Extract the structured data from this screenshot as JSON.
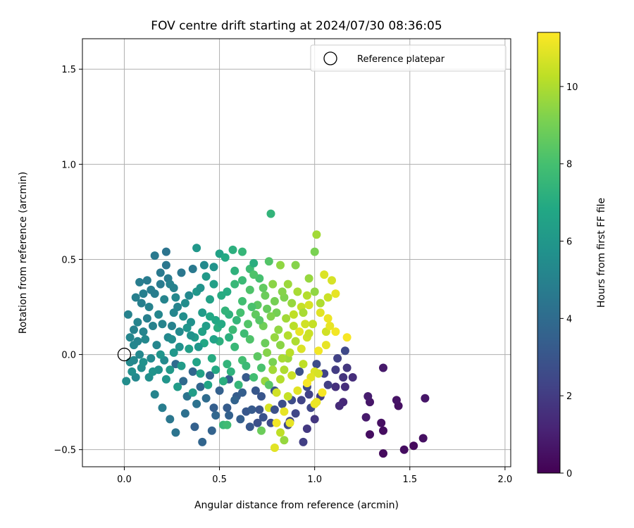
{
  "chart_data": {
    "type": "scatter",
    "title": "FOV centre drift starting at 2024/07/30 08:36:05",
    "xlabel": "Angular distance from reference (arcmin)",
    "ylabel": "Rotation from reference (arcmin)",
    "xlim": [
      -0.22,
      2.03
    ],
    "ylim": [
      -0.59,
      1.66
    ],
    "x_ticks": [
      0.0,
      0.5,
      1.0,
      1.5,
      2.0
    ],
    "x_tick_labels": [
      "0.0",
      "0.5",
      "1.0",
      "1.5",
      "2.0"
    ],
    "y_ticks": [
      -0.5,
      0.0,
      0.5,
      1.0,
      1.5
    ],
    "y_tick_labels": [
      "−0.5",
      "0.0",
      "0.5",
      "1.0",
      "1.5"
    ],
    "grid": true,
    "legend": {
      "placement": "top-right",
      "entries": [
        {
          "label": "Reference platepar",
          "marker": "open-circle"
        }
      ]
    },
    "reference_point": {
      "x": 0.0,
      "y": 0.0
    },
    "colorbar": {
      "label": "Hours from first FF file",
      "range": [
        0,
        11.4
      ],
      "ticks": [
        0,
        2,
        4,
        6,
        8,
        10
      ],
      "tick_labels": [
        "0",
        "2",
        "4",
        "6",
        "8",
        "10"
      ],
      "colormap": "viridis"
    },
    "point_columns": [
      "x",
      "y",
      "hours"
    ],
    "points": [
      [
        0.79,
        -0.49,
        10.9
      ],
      [
        1.36,
        -0.52,
        0.3
      ],
      [
        1.57,
        -0.44,
        0.5
      ],
      [
        1.52,
        -0.48,
        0.3
      ],
      [
        1.47,
        -0.5,
        0.4
      ],
      [
        1.58,
        -0.23,
        0.7
      ],
      [
        1.44,
        -0.27,
        0.5
      ],
      [
        1.43,
        -0.24,
        0.6
      ],
      [
        1.36,
        -0.4,
        0.4
      ],
      [
        1.35,
        -0.36,
        0.5
      ],
      [
        1.29,
        -0.42,
        0.4
      ],
      [
        1.36,
        -0.07,
        0.8
      ],
      [
        1.29,
        -0.25,
        0.7
      ],
      [
        1.27,
        -0.33,
        0.8
      ],
      [
        1.28,
        -0.22,
        0.9
      ],
      [
        1.15,
        -0.25,
        1.3
      ],
      [
        1.13,
        -0.27,
        1.4
      ],
      [
        1.16,
        -0.17,
        1.5
      ],
      [
        1.11,
        -0.17,
        1.6
      ],
      [
        1.15,
        -0.12,
        1.7
      ],
      [
        1.11,
        -0.08,
        2.0
      ],
      [
        1.17,
        -0.07,
        1.8
      ],
      [
        1.2,
        -0.12,
        1.5
      ],
      [
        1.12,
        -0.02,
        2.2
      ],
      [
        1.16,
        0.02,
        2.5
      ],
      [
        0.96,
        -0.39,
        1.9
      ],
      [
        0.94,
        -0.46,
        2.1
      ],
      [
        0.87,
        -0.35,
        2.3
      ],
      [
        0.77,
        -0.36,
        2.6
      ],
      [
        0.7,
        -0.36,
        2.8
      ],
      [
        0.71,
        -0.29,
        2.9
      ],
      [
        0.64,
        -0.3,
        3.1
      ],
      [
        0.54,
        -0.28,
        3.3
      ],
      [
        0.47,
        -0.28,
        3.4
      ],
      [
        0.37,
        -0.38,
        3.5
      ],
      [
        0.41,
        -0.46,
        3.7
      ],
      [
        1.0,
        -0.34,
        1.8
      ],
      [
        0.98,
        -0.28,
        2.4
      ],
      [
        1.03,
        -0.22,
        2.0
      ],
      [
        1.07,
        -0.16,
        2.1
      ],
      [
        1.01,
        -0.05,
        2.6
      ],
      [
        1.05,
        -0.1,
        2.3
      ],
      [
        0.96,
        -0.17,
        2.5
      ],
      [
        0.92,
        -0.09,
        2.8
      ],
      [
        0.88,
        -0.24,
        2.6
      ],
      [
        0.83,
        -0.26,
        2.7
      ],
      [
        0.79,
        -0.19,
        2.9
      ],
      [
        0.74,
        -0.14,
        3.0
      ],
      [
        0.69,
        -0.19,
        3.1
      ],
      [
        0.64,
        -0.12,
        3.2
      ],
      [
        0.59,
        -0.22,
        3.3
      ],
      [
        0.55,
        -0.13,
        3.4
      ],
      [
        0.5,
        -0.19,
        3.5
      ],
      [
        0.45,
        -0.11,
        3.6
      ],
      [
        0.4,
        -0.17,
        3.7
      ],
      [
        0.36,
        -0.09,
        3.8
      ],
      [
        0.31,
        -0.14,
        3.9
      ],
      [
        0.27,
        -0.05,
        4.0
      ],
      [
        0.32,
        -0.31,
        4.2
      ],
      [
        0.24,
        -0.34,
        4.5
      ],
      [
        0.2,
        -0.28,
        4.8
      ],
      [
        0.16,
        -0.21,
        5.1
      ],
      [
        0.27,
        -0.41,
        4.4
      ],
      [
        0.06,
        -0.12,
        5.3
      ],
      [
        0.01,
        -0.14,
        5.5
      ],
      [
        0.02,
        0.21,
        5.0
      ],
      [
        0.05,
        0.05,
        5.2
      ],
      [
        0.03,
        -0.04,
        5.4
      ],
      [
        0.08,
        0.0,
        5.3
      ],
      [
        0.1,
        0.12,
        5.1
      ],
      [
        0.13,
        0.25,
        5.0
      ],
      [
        0.16,
        0.32,
        4.8
      ],
      [
        0.09,
        0.27,
        4.9
      ],
      [
        0.12,
        0.39,
        4.7
      ],
      [
        0.16,
        0.52,
        4.6
      ],
      [
        0.22,
        0.54,
        4.4
      ],
      [
        0.19,
        0.43,
        4.6
      ],
      [
        0.23,
        0.4,
        4.7
      ],
      [
        0.26,
        0.35,
        5.0
      ],
      [
        0.3,
        0.43,
        4.5
      ],
      [
        0.36,
        0.45,
        4.6
      ],
      [
        0.38,
        0.56,
        6.0
      ],
      [
        0.42,
        0.47,
        5.4
      ],
      [
        0.47,
        0.46,
        5.8
      ],
      [
        0.5,
        0.53,
        6.5
      ],
      [
        0.53,
        0.51,
        6.9
      ],
      [
        0.57,
        0.55,
        7.2
      ],
      [
        0.62,
        0.54,
        7.5
      ],
      [
        0.66,
        0.45,
        7.8
      ],
      [
        0.68,
        0.48,
        7.1
      ],
      [
        0.71,
        0.4,
        8.0
      ],
      [
        0.76,
        0.49,
        8.3
      ],
      [
        0.77,
        0.74,
        7.4
      ],
      [
        0.82,
        0.47,
        9.5
      ],
      [
        0.9,
        0.47,
        9.3
      ],
      [
        0.97,
        0.4,
        9.6
      ],
      [
        1.0,
        0.54,
        9.1
      ],
      [
        1.01,
        0.63,
        9.8
      ],
      [
        1.05,
        0.42,
        10.8
      ],
      [
        1.09,
        0.39,
        10.7
      ],
      [
        1.11,
        0.32,
        11.0
      ],
      [
        1.07,
        0.3,
        10.5
      ],
      [
        1.03,
        0.22,
        10.9
      ],
      [
        1.07,
        0.19,
        11.1
      ],
      [
        1.11,
        0.12,
        11.2
      ],
      [
        1.17,
        0.09,
        11.3
      ],
      [
        1.06,
        0.05,
        11.0
      ],
      [
        1.02,
        0.02,
        11.2
      ],
      [
        1.0,
        -0.09,
        10.8
      ],
      [
        1.04,
        -0.2,
        11.3
      ],
      [
        1.01,
        -0.25,
        11.1
      ],
      [
        0.98,
        -0.12,
        10.9
      ],
      [
        0.96,
        0.09,
        10.6
      ],
      [
        0.93,
        0.25,
        10.4
      ],
      [
        0.96,
        0.31,
        10.1
      ],
      [
        0.91,
        0.33,
        9.9
      ],
      [
        0.86,
        0.37,
        9.7
      ],
      [
        0.84,
        0.3,
        9.2
      ],
      [
        0.8,
        0.22,
        9.0
      ],
      [
        0.78,
        0.37,
        9.4
      ],
      [
        0.74,
        0.31,
        8.8
      ],
      [
        0.7,
        0.26,
        8.5
      ],
      [
        0.66,
        0.34,
        8.2
      ],
      [
        0.62,
        0.28,
        7.9
      ],
      [
        0.58,
        0.37,
        7.6
      ],
      [
        0.55,
        0.21,
        7.3
      ],
      [
        0.51,
        0.31,
        7.0
      ],
      [
        0.48,
        0.18,
        6.8
      ],
      [
        0.45,
        0.29,
        6.5
      ],
      [
        0.41,
        0.22,
        6.2
      ],
      [
        0.38,
        0.33,
        6.0
      ],
      [
        0.35,
        0.17,
        5.7
      ],
      [
        0.32,
        0.27,
        5.5
      ],
      [
        0.29,
        0.12,
        5.4
      ],
      [
        0.26,
        0.22,
        5.2
      ],
      [
        0.23,
        0.09,
        5.3
      ],
      [
        0.2,
        0.16,
        5.1
      ],
      [
        0.17,
        0.05,
        5.2
      ],
      [
        0.14,
        -0.02,
        5.4
      ],
      [
        0.11,
        0.08,
        5.3
      ],
      [
        0.07,
        0.17,
        5.1
      ],
      [
        0.05,
        0.13,
        5.0
      ],
      [
        0.09,
        -0.07,
        5.5
      ],
      [
        0.13,
        -0.12,
        5.6
      ],
      [
        0.18,
        -0.08,
        5.7
      ],
      [
        0.22,
        -0.13,
        5.9
      ],
      [
        0.26,
        0.01,
        6.0
      ],
      [
        0.3,
        -0.06,
        6.2
      ],
      [
        0.34,
        0.03,
        6.4
      ],
      [
        0.38,
        -0.04,
        6.6
      ],
      [
        0.42,
        0.06,
        6.8
      ],
      [
        0.46,
        -0.02,
        7.0
      ],
      [
        0.5,
        0.07,
        7.2
      ],
      [
        0.54,
        -0.05,
        7.4
      ],
      [
        0.58,
        0.04,
        7.6
      ],
      [
        0.62,
        -0.03,
        7.9
      ],
      [
        0.66,
        0.08,
        8.2
      ],
      [
        0.7,
        -0.01,
        8.5
      ],
      [
        0.74,
        0.06,
        8.8
      ],
      [
        0.78,
        -0.04,
        9.1
      ],
      [
        0.82,
        0.05,
        9.4
      ],
      [
        0.86,
        -0.02,
        9.7
      ],
      [
        0.9,
        0.07,
        10.0
      ],
      [
        0.94,
        -0.05,
        10.3
      ],
      [
        0.97,
        0.11,
        10.5
      ],
      [
        0.89,
        0.15,
        10.2
      ],
      [
        0.85,
        0.19,
        9.8
      ],
      [
        0.81,
        0.13,
        9.5
      ],
      [
        0.77,
        0.2,
        9.2
      ],
      [
        0.73,
        0.15,
        8.9
      ],
      [
        0.69,
        0.21,
        8.6
      ],
      [
        0.65,
        0.16,
        8.3
      ],
      [
        0.61,
        0.22,
        8.0
      ],
      [
        0.57,
        0.13,
        7.7
      ],
      [
        0.53,
        0.23,
        7.4
      ],
      [
        0.49,
        0.14,
        7.1
      ],
      [
        0.45,
        0.2,
        6.8
      ],
      [
        0.41,
        0.12,
        6.5
      ],
      [
        0.37,
        0.09,
        6.2
      ],
      [
        0.33,
        0.14,
        5.9
      ],
      [
        0.29,
        0.04,
        5.7
      ],
      [
        0.25,
        0.08,
        5.5
      ],
      [
        0.21,
        -0.03,
        5.4
      ],
      [
        0.33,
        -0.22,
        4.4
      ],
      [
        0.38,
        -0.26,
        4.3
      ],
      [
        0.43,
        -0.23,
        4.0
      ],
      [
        0.48,
        -0.32,
        3.8
      ],
      [
        0.52,
        -0.37,
        7.6
      ],
      [
        0.58,
        -0.24,
        3.6
      ],
      [
        0.62,
        -0.2,
        3.4
      ],
      [
        0.67,
        -0.29,
        3.2
      ],
      [
        0.72,
        -0.22,
        3.0
      ],
      [
        0.76,
        -0.28,
        10.7
      ],
      [
        0.8,
        -0.36,
        11.2
      ],
      [
        0.84,
        -0.3,
        11.0
      ],
      [
        0.86,
        -0.22,
        10.4
      ],
      [
        0.82,
        -0.13,
        10.1
      ],
      [
        0.78,
        -0.08,
        9.8
      ],
      [
        0.74,
        -0.14,
        9.6
      ],
      [
        0.88,
        -0.11,
        10.5
      ],
      [
        0.91,
        -0.19,
        10.9
      ],
      [
        0.87,
        0.01,
        10.2
      ],
      [
        0.93,
        0.03,
        10.8
      ],
      [
        0.99,
        0.16,
        10.4
      ],
      [
        1.06,
        0.12,
        10.6
      ],
      [
        0.94,
        0.22,
        9.9
      ],
      [
        0.88,
        0.27,
        9.6
      ],
      [
        0.83,
        0.33,
        9.3
      ],
      [
        0.79,
        0.28,
        9.0
      ],
      [
        0.75,
        0.24,
        8.7
      ],
      [
        0.71,
        0.18,
        8.4
      ],
      [
        0.67,
        0.25,
        8.1
      ],
      [
        0.63,
        0.11,
        7.8
      ],
      [
        0.59,
        0.18,
        7.5
      ],
      [
        0.55,
        0.09,
        7.2
      ],
      [
        0.51,
        0.16,
        6.9
      ],
      [
        0.47,
        0.08,
        6.6
      ],
      [
        0.43,
        0.15,
        6.3
      ],
      [
        0.39,
        0.04,
        6.0
      ],
      [
        0.35,
        0.1,
        5.8
      ],
      [
        0.31,
        0.2,
        5.6
      ],
      [
        0.27,
        0.3,
        5.3
      ],
      [
        0.24,
        0.37,
        5.0
      ],
      [
        0.21,
        0.29,
        5.1
      ],
      [
        0.18,
        0.21,
        5.2
      ],
      [
        0.15,
        0.15,
        5.0
      ],
      [
        0.12,
        0.19,
        4.9
      ],
      [
        0.07,
        0.07,
        5.1
      ],
      [
        0.04,
        -0.09,
        5.6
      ],
      [
        0.1,
        -0.04,
        5.7
      ],
      [
        0.15,
        -0.09,
        5.8
      ],
      [
        0.19,
        0.0,
        5.9
      ],
      [
        0.24,
        -0.08,
        6.1
      ],
      [
        0.28,
        -0.17,
        6.2
      ],
      [
        0.36,
        -0.2,
        6.3
      ],
      [
        0.4,
        -0.1,
        6.5
      ],
      [
        0.44,
        -0.16,
        6.7
      ],
      [
        0.48,
        -0.08,
        6.9
      ],
      [
        0.52,
        -0.14,
        7.1
      ],
      [
        0.56,
        -0.09,
        7.3
      ],
      [
        0.6,
        -0.16,
        7.5
      ],
      [
        0.64,
        -0.06,
        7.7
      ],
      [
        0.68,
        -0.12,
        7.9
      ],
      [
        0.72,
        -0.07,
        8.1
      ],
      [
        0.76,
        -0.16,
        8.4
      ],
      [
        0.8,
        -0.2,
        10.6
      ],
      [
        0.84,
        -0.08,
        10.0
      ],
      [
        0.68,
        0.42,
        8.2
      ],
      [
        0.73,
        0.35,
        8.6
      ],
      [
        0.58,
        0.44,
        7.3
      ],
      [
        0.62,
        0.39,
        7.7
      ],
      [
        0.54,
        0.33,
        7.0
      ],
      [
        0.47,
        0.37,
        6.4
      ],
      [
        0.43,
        0.41,
        6.1
      ],
      [
        0.4,
        0.35,
        5.8
      ],
      [
        0.34,
        0.31,
        5.3
      ],
      [
        0.28,
        0.25,
        5.1
      ],
      [
        0.25,
        0.15,
        5.0
      ],
      [
        0.22,
        0.47,
        4.5
      ],
      [
        0.19,
        0.37,
        4.7
      ],
      [
        0.14,
        0.34,
        4.8
      ],
      [
        0.1,
        0.32,
        4.9
      ],
      [
        0.08,
        0.38,
        4.8
      ],
      [
        0.06,
        0.3,
        4.9
      ],
      [
        0.03,
        0.09,
        5.2
      ],
      [
        0.05,
        -0.03,
        5.3
      ],
      [
        0.46,
        -0.4,
        3.6
      ],
      [
        0.55,
        -0.32,
        3.5
      ],
      [
        0.61,
        -0.34,
        3.4
      ],
      [
        0.66,
        -0.38,
        3.1
      ],
      [
        0.73,
        -0.33,
        2.9
      ],
      [
        0.79,
        -0.29,
        2.8
      ],
      [
        0.86,
        -0.37,
        2.5
      ],
      [
        0.9,
        -0.31,
        2.4
      ],
      [
        0.93,
        -0.24,
        2.3
      ],
      [
        0.97,
        -0.21,
        2.2
      ],
      [
        0.54,
        -0.37,
        7.8
      ],
      [
        0.72,
        -0.4,
        8.8
      ],
      [
        0.82,
        -0.41,
        10.3
      ],
      [
        0.84,
        -0.45,
        9.6
      ],
      [
        0.87,
        -0.36,
        11.0
      ],
      [
        1.0,
        -0.26,
        11.1
      ],
      [
        0.96,
        -0.15,
        11.3
      ],
      [
        1.02,
        -0.1,
        10.7
      ],
      [
        1.08,
        0.15,
        11.0
      ],
      [
        1.03,
        0.27,
        10.0
      ],
      [
        1.0,
        0.33,
        9.5
      ],
      [
        0.97,
        0.26,
        10.7
      ],
      [
        0.92,
        0.12,
        11.0
      ],
      [
        0.95,
        0.16,
        10.6
      ],
      [
        0.89,
        0.21,
        10.3
      ],
      [
        0.86,
        0.1,
        10.1
      ],
      [
        0.83,
        -0.02,
        9.9
      ],
      [
        0.79,
        0.09,
        9.6
      ],
      [
        0.75,
        0.01,
        9.3
      ]
    ]
  }
}
